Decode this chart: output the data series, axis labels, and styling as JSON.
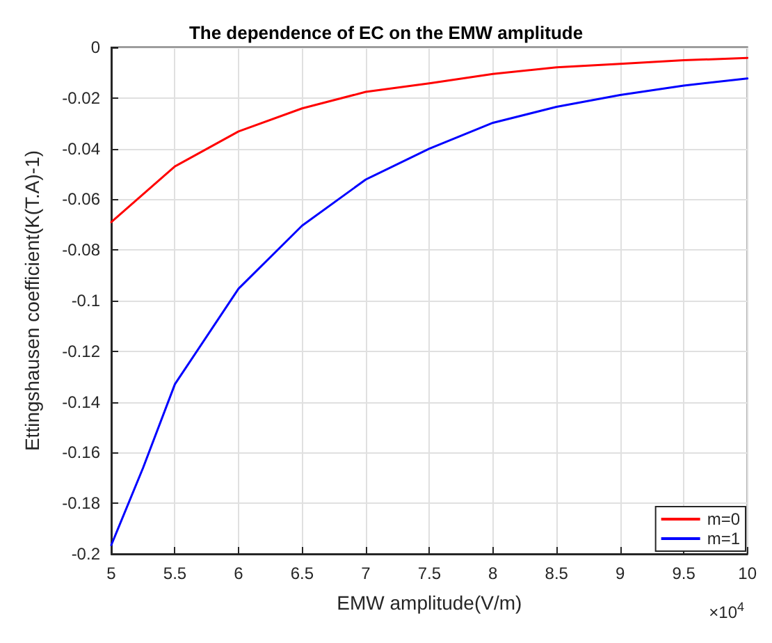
{
  "chart_data": {
    "type": "line",
    "title": "The dependence of EC on the EMW amplitude",
    "xlabel": "EMW amplitude(V/m)",
    "ylabel": "Ettingshausen coefficient(K(T.A)-1)",
    "annotations": [
      "×10$^{4}$"
    ],
    "series": [
      {
        "name": "m=0",
        "color": "#ff0000",
        "x": [
          5,
          5.5,
          6,
          6.5,
          7,
          7.5,
          8,
          8.5,
          9,
          9.5,
          10
        ],
        "values": [
          -0.069,
          -0.047,
          -0.0332,
          -0.0241,
          -0.0176,
          -0.0142,
          -0.0105,
          -0.0079,
          -0.0065,
          -0.0051,
          -0.0042
        ]
      },
      {
        "name": "m=1",
        "color": "#0000ff",
        "x": [
          5,
          5.25,
          5.5,
          6,
          6.5,
          7,
          7.5,
          8,
          8.5,
          9,
          9.5,
          10
        ],
        "values": [
          -0.1965,
          -0.166,
          -0.133,
          -0.0953,
          -0.0704,
          -0.0522,
          -0.04,
          -0.0298,
          -0.0235,
          -0.0188,
          -0.0151,
          -0.0123
        ]
      }
    ],
    "xlim": [
      5,
      10
    ],
    "xticks": [
      5,
      5.5,
      6,
      6.5,
      7,
      7.5,
      8,
      8.5,
      9,
      9.5,
      10
    ],
    "ylim": [
      -0.2,
      0
    ],
    "yticks": [
      -0.2,
      -0.18,
      -0.16,
      -0.14,
      -0.12,
      -0.1,
      -0.08,
      -0.06,
      -0.04,
      -0.02,
      0
    ],
    "grid": true,
    "legend": "bottom right",
    "marker": "none",
    "line_style": "solid"
  }
}
